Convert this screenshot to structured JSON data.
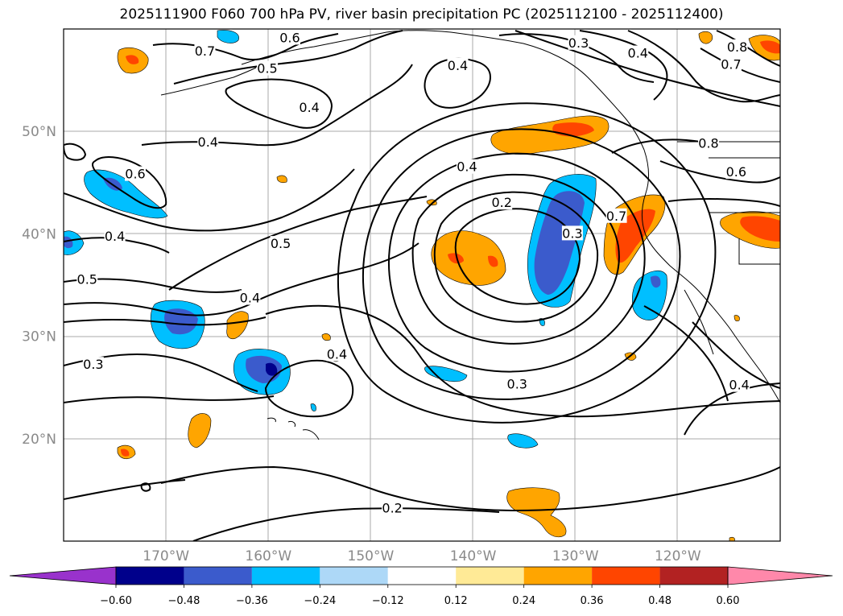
{
  "title": "2025111900 F060 700 hPa PV, river basin precipitation PC (2025112100 - 2025112400)",
  "map": {
    "extent": {
      "lon_min": -180,
      "lon_max": -110,
      "lat_min": 10,
      "lat_max": 60
    },
    "lat_labels": [
      {
        "lat": 50,
        "text": "50°N"
      },
      {
        "lat": 40,
        "text": "40°N"
      },
      {
        "lat": 30,
        "text": "30°N"
      },
      {
        "lat": 20,
        "text": "20°N"
      }
    ],
    "lon_labels": [
      {
        "lon": -170,
        "text": "170°W"
      },
      {
        "lon": -160,
        "text": "160°W"
      },
      {
        "lon": -150,
        "text": "150°W"
      },
      {
        "lon": -140,
        "text": "140°W"
      },
      {
        "lon": -130,
        "text": "130°W"
      },
      {
        "lon": -120,
        "text": "120°W"
      }
    ],
    "contour_labels": [
      {
        "lon": -166.2,
        "lat": 57.8,
        "text": "0.7"
      },
      {
        "lon": -157.9,
        "lat": 59.1,
        "text": "0.6"
      },
      {
        "lon": -160.1,
        "lat": 56.1,
        "text": "0.5"
      },
      {
        "lon": -156.0,
        "lat": 52.3,
        "text": "0.4"
      },
      {
        "lon": -141.5,
        "lat": 56.4,
        "text": "0.4"
      },
      {
        "lon": -129.7,
        "lat": 58.6,
        "text": "0.3"
      },
      {
        "lon": -123.9,
        "lat": 57.6,
        "text": "0.4"
      },
      {
        "lon": -114.2,
        "lat": 58.2,
        "text": "0.8"
      },
      {
        "lon": -114.8,
        "lat": 56.5,
        "text": "0.7"
      },
      {
        "lon": -117.0,
        "lat": 48.8,
        "text": "0.8"
      },
      {
        "lon": -114.3,
        "lat": 46.0,
        "text": "0.6"
      },
      {
        "lon": -165.9,
        "lat": 48.9,
        "text": "0.4"
      },
      {
        "lon": -173.0,
        "lat": 45.8,
        "text": "0.6"
      },
      {
        "lon": -175.0,
        "lat": 39.7,
        "text": "0.4"
      },
      {
        "lon": -177.7,
        "lat": 35.5,
        "text": "0.5"
      },
      {
        "lon": -158.8,
        "lat": 39.0,
        "text": "0.5"
      },
      {
        "lon": -161.8,
        "lat": 33.7,
        "text": "0.4"
      },
      {
        "lon": -177.1,
        "lat": 27.2,
        "text": "0.3"
      },
      {
        "lon": -153.3,
        "lat": 28.2,
        "text": "0.4"
      },
      {
        "lon": -140.6,
        "lat": 46.5,
        "text": "0.4"
      },
      {
        "lon": -137.2,
        "lat": 43.0,
        "text": "0.2"
      },
      {
        "lon": -130.3,
        "lat": 40.0,
        "text": "0.3"
      },
      {
        "lon": -126.0,
        "lat": 41.7,
        "text": "0.7"
      },
      {
        "lon": -135.7,
        "lat": 25.3,
        "text": "0.3"
      },
      {
        "lon": -147.9,
        "lat": 13.2,
        "text": "0.2"
      },
      {
        "lon": -114.0,
        "lat": 25.2,
        "text": "0.4"
      }
    ]
  },
  "colorbar": {
    "colors": [
      "#9932cc",
      "#00008b",
      "#3b5bcc",
      "#00bfff",
      "#add8f7",
      "#ffffff",
      "#ffea96",
      "#ffa500",
      "#ff4500",
      "#b22222",
      "#ff88aa"
    ],
    "tick_labels": [
      "−0.60",
      "−0.48",
      "−0.36",
      "−0.24",
      "−0.12",
      "0.12",
      "0.24",
      "0.36",
      "0.48",
      "0.60"
    ]
  }
}
